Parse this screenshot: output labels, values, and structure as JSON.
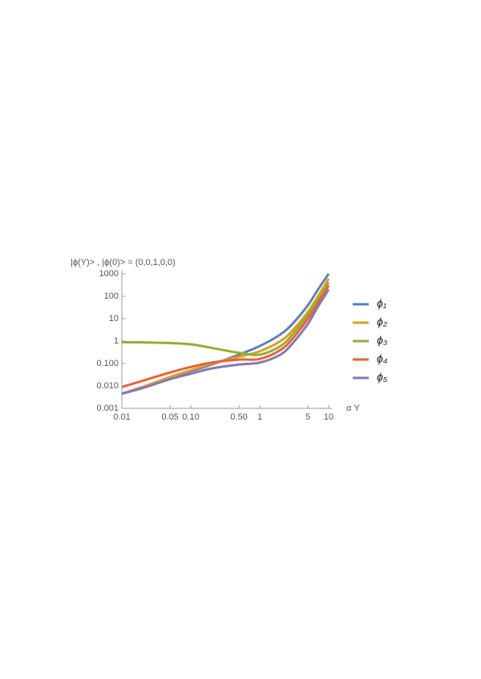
{
  "chart_data": {
    "type": "line",
    "y_label": "|ϕ(Y)> , |ϕ(0)> = (0,0,1,0,0)",
    "x_label": "α Y",
    "log_x": true,
    "log_y": true,
    "x": [
      0.01,
      0.02,
      0.05,
      0.1,
      0.2,
      0.5,
      1,
      2,
      3,
      5,
      7,
      10
    ],
    "series": [
      {
        "name": "ϕ₁",
        "color": "#5e81b5",
        "values": [
          0.0045,
          0.009,
          0.022,
          0.045,
          0.09,
          0.25,
          0.6,
          2,
          6,
          40,
          200,
          1000
        ]
      },
      {
        "name": "ϕ₂",
        "color": "#e19c24",
        "values": [
          0.0045,
          0.009,
          0.025,
          0.05,
          0.1,
          0.2,
          0.35,
          1,
          3,
          20,
          100,
          600
        ]
      },
      {
        "name": "ϕ₃",
        "color": "#8fb032",
        "values": [
          0.9,
          0.88,
          0.82,
          0.72,
          0.5,
          0.3,
          0.25,
          0.6,
          2,
          15,
          70,
          400
        ]
      },
      {
        "name": "ϕ₄",
        "color": "#eb6235",
        "values": [
          0.009,
          0.017,
          0.04,
          0.07,
          0.11,
          0.15,
          0.16,
          0.4,
          1.3,
          10,
          50,
          300
        ]
      },
      {
        "name": "ϕ₅",
        "color": "#8778b3",
        "values": [
          0.0045,
          0.008,
          0.02,
          0.035,
          0.06,
          0.09,
          0.11,
          0.25,
          0.8,
          6,
          35,
          200
        ]
      }
    ],
    "xlim": [
      0.01,
      10
    ],
    "ylim": [
      0.001,
      1000
    ],
    "xticks": [
      0.01,
      0.05,
      {
        "value": 0.1,
        "label": "0.10"
      },
      {
        "value": 0.5,
        "label": "0.50"
      },
      1,
      5,
      10
    ],
    "yticks": [
      0.001,
      {
        "value": 0.01,
        "label": "0.010"
      },
      {
        "value": 0.1,
        "label": "0.100"
      },
      1,
      10,
      100,
      1000
    ],
    "legend": "right"
  }
}
